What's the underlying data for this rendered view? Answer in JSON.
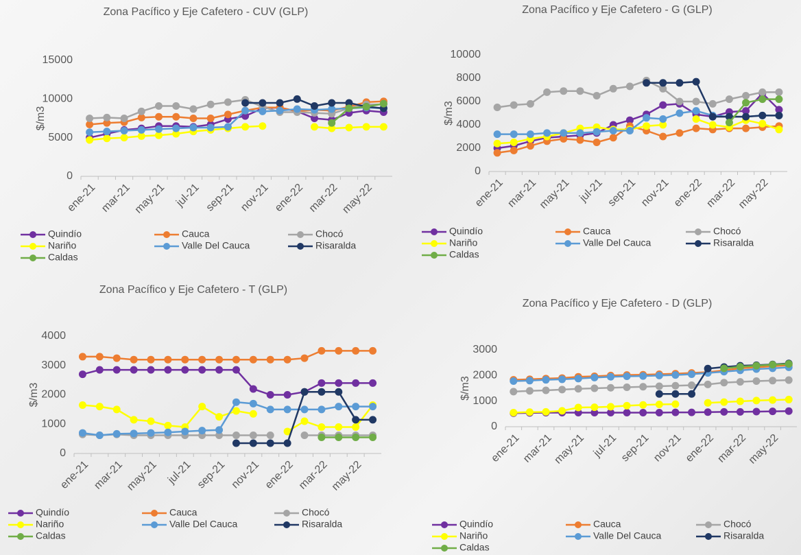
{
  "chart_data": [
    {
      "type": "line",
      "title": "Zona Pacífico y Eje Cafetero - CUV (GLP)",
      "y_label": "$/m3",
      "categories": [
        "ene-21",
        null,
        "mar-21",
        null,
        "may-21",
        null,
        "jul-21",
        null,
        "sep-21",
        null,
        "nov-21",
        null,
        "ene-22",
        null,
        "mar-22",
        null,
        "may-22",
        null
      ],
      "ylim": [
        0,
        15000
      ],
      "yticks": [
        0,
        5000,
        10000,
        15000
      ],
      "series": [
        {
          "name": "Quindío",
          "color": "#7030a0",
          "values": [
            5000,
            5500,
            6000,
            6200,
            6500,
            6500,
            6400,
            6700,
            7400,
            7800,
            8800,
            8900,
            8400,
            7500,
            7300,
            8200,
            8500,
            8300
          ]
        },
        {
          "name": "Cauca",
          "color": "#ed7d31",
          "values": [
            6700,
            6900,
            7000,
            7600,
            7700,
            7700,
            7500,
            7500,
            8000,
            8500,
            8900,
            8900,
            8400,
            8600,
            8500,
            9000,
            9600,
            9700
          ]
        },
        {
          "name": "Chocó",
          "color": "#a5a5a5",
          "values": [
            7500,
            7600,
            7500,
            8400,
            9100,
            9100,
            8700,
            9300,
            9600,
            9900,
            9000,
            8300,
            8300,
            8200,
            8100,
            8800,
            9300,
            9300
          ]
        },
        {
          "name": "Nariño",
          "color": "#ffff00",
          "values": [
            4700,
            4900,
            5000,
            5200,
            5300,
            5500,
            5800,
            6000,
            6200,
            6400,
            6500,
            null,
            null,
            6400,
            6200,
            6300,
            6400,
            6400
          ]
        },
        {
          "name": "Valle Del Cauca",
          "color": "#5b9bd5",
          "values": [
            5700,
            5800,
            5900,
            6000,
            6100,
            6200,
            6300,
            6300,
            6400,
            8500,
            8400,
            8500,
            8700,
            8600,
            8700,
            8800,
            8900,
            8800
          ]
        },
        {
          "name": "Risaralda",
          "color": "#203864",
          "values": [
            null,
            null,
            null,
            null,
            null,
            null,
            null,
            null,
            null,
            9500,
            9500,
            9500,
            10000,
            9100,
            9500,
            9500,
            9000,
            8800
          ]
        },
        {
          "name": "Caldas",
          "color": "#70ad47",
          "values": [
            null,
            null,
            null,
            null,
            null,
            null,
            null,
            null,
            null,
            null,
            null,
            null,
            null,
            null,
            6900,
            8800,
            9000,
            9400
          ]
        }
      ]
    },
    {
      "type": "line",
      "title": "Zona Pacífico y Eje Cafetero - G (GLP)",
      "y_label": "$/m3",
      "categories": [
        "ene-21",
        null,
        "mar-21",
        null,
        "may-21",
        null,
        "jul-21",
        null,
        "sep-21",
        null,
        "nov-21",
        null,
        "ene-22",
        null,
        "mar-22",
        null,
        "may-22",
        null
      ],
      "ylim": [
        0,
        10000
      ],
      "yticks": [
        0,
        2000,
        4000,
        6000,
        8000,
        10000
      ],
      "series": [
        {
          "name": "Quindío",
          "color": "#7030a0",
          "values": [
            2000,
            2200,
            2600,
            2900,
            3000,
            3100,
            3300,
            4000,
            4400,
            4900,
            5700,
            5800,
            4900,
            4700,
            5100,
            5200,
            6700,
            5300
          ]
        },
        {
          "name": "Cauca",
          "color": "#ed7d31",
          "values": [
            1600,
            1800,
            2200,
            2600,
            2800,
            2700,
            2500,
            2900,
            3900,
            3500,
            3000,
            3300,
            3700,
            3600,
            3700,
            3700,
            3800,
            3900
          ]
        },
        {
          "name": "Chocó",
          "color": "#a5a5a5",
          "values": [
            5500,
            5700,
            5800,
            6800,
            6900,
            6900,
            6500,
            7100,
            7300,
            7800,
            7100,
            6000,
            6000,
            5800,
            6200,
            6500,
            6800,
            6800
          ]
        },
        {
          "name": "Nariño",
          "color": "#ffff00",
          "values": [
            2400,
            2500,
            2800,
            3000,
            3300,
            3700,
            3800,
            3600,
            3600,
            3900,
            4000,
            null,
            4500,
            4000,
            3800,
            4400,
            4100,
            3600
          ]
        },
        {
          "name": "Valle Del Cauca",
          "color": "#5b9bd5",
          "values": [
            3200,
            3200,
            3200,
            3300,
            3300,
            3300,
            3400,
            3500,
            3500,
            4600,
            4500,
            5000,
            5200,
            4800,
            4700,
            4700,
            4800,
            4800
          ]
        },
        {
          "name": "Risaralda",
          "color": "#203864",
          "values": [
            null,
            null,
            null,
            null,
            null,
            null,
            null,
            null,
            null,
            7600,
            7600,
            7600,
            7700,
            4700,
            4700,
            4700,
            4800,
            4800
          ]
        },
        {
          "name": "Caldas",
          "color": "#70ad47",
          "values": [
            null,
            null,
            null,
            null,
            null,
            null,
            null,
            null,
            null,
            null,
            null,
            null,
            null,
            null,
            4200,
            5900,
            6200,
            6200
          ]
        }
      ]
    },
    {
      "type": "line",
      "title": "Zona Pacífico y Eje Cafetero - T (GLP)",
      "y_label": "$/m3",
      "categories": [
        "ene-21",
        null,
        "mar-21",
        null,
        "may-21",
        null,
        "jul-21",
        null,
        "sep-21",
        null,
        "nov-21",
        null,
        "ene-22",
        null,
        "mar-22",
        null,
        "may-22",
        null
      ],
      "ylim": [
        0,
        4000
      ],
      "yticks": [
        0,
        1000,
        2000,
        3000,
        4000
      ],
      "series": [
        {
          "name": "Quindío",
          "color": "#7030a0",
          "values": [
            2700,
            2850,
            2850,
            2850,
            2850,
            2850,
            2850,
            2850,
            2850,
            2850,
            2200,
            2000,
            2000,
            2100,
            2400,
            2400,
            2400,
            2400
          ]
        },
        {
          "name": "Cauca",
          "color": "#ed7d31",
          "values": [
            3300,
            3300,
            3250,
            3200,
            3200,
            3200,
            3200,
            3200,
            3200,
            3200,
            3200,
            3200,
            3200,
            3250,
            3500,
            3500,
            3500,
            3500
          ]
        },
        {
          "name": "Chocó",
          "color": "#a5a5a5",
          "values": [
            650,
            620,
            650,
            620,
            620,
            620,
            620,
            620,
            620,
            620,
            620,
            620,
            null,
            620,
            620,
            620,
            620,
            620
          ]
        },
        {
          "name": "Nariño",
          "color": "#ffff00",
          "values": [
            1650,
            1600,
            1500,
            1150,
            1100,
            950,
            900,
            1600,
            1250,
            1450,
            1350,
            null,
            750,
            1100,
            900,
            900,
            900,
            1650
          ]
        },
        {
          "name": "Valle Del Cauca",
          "color": "#5b9bd5",
          "values": [
            700,
            620,
            670,
            680,
            700,
            720,
            750,
            780,
            800,
            1750,
            1700,
            1500,
            1500,
            1500,
            1500,
            1600,
            1600,
            1600
          ]
        },
        {
          "name": "Risaralda",
          "color": "#203864",
          "values": [
            null,
            null,
            null,
            null,
            null,
            null,
            null,
            null,
            null,
            350,
            350,
            350,
            350,
            2100,
            2100,
            2100,
            1150,
            1150
          ]
        },
        {
          "name": "Caldas",
          "color": "#70ad47",
          "values": [
            null,
            null,
            null,
            null,
            null,
            null,
            null,
            null,
            null,
            null,
            null,
            null,
            null,
            null,
            550,
            550,
            550,
            550
          ]
        }
      ]
    },
    {
      "type": "line",
      "title": "Zona Pacífico y Eje Cafetero - D (GLP)",
      "y_label": "$/m3",
      "categories": [
        "ene-21",
        null,
        "mar-21",
        null,
        "may-21",
        null,
        "jul-21",
        null,
        "sep-21",
        null,
        "nov-21",
        null,
        "ene-22",
        null,
        "mar-22",
        null,
        "may-22",
        null
      ],
      "ylim": [
        0,
        3000
      ],
      "yticks": [
        0,
        1000,
        2000,
        3000
      ],
      "series": [
        {
          "name": "Quindío",
          "color": "#7030a0",
          "values": [
            530,
            540,
            550,
            550,
            550,
            550,
            550,
            550,
            550,
            550,
            560,
            560,
            570,
            580,
            580,
            590,
            600,
            610
          ]
        },
        {
          "name": "Cauca",
          "color": "#ed7d31",
          "values": [
            1830,
            1850,
            1880,
            1900,
            1950,
            1970,
            2000,
            2020,
            2030,
            2050,
            2070,
            2100,
            2130,
            2200,
            2280,
            2320,
            2360,
            2400
          ]
        },
        {
          "name": "Chocó",
          "color": "#a5a5a5",
          "values": [
            1370,
            1400,
            1420,
            1450,
            1480,
            1500,
            1520,
            1540,
            1560,
            1580,
            1600,
            1620,
            1650,
            1720,
            1750,
            1780,
            1800,
            1820
          ]
        },
        {
          "name": "Nariño",
          "color": "#ffff00",
          "values": [
            550,
            570,
            580,
            620,
            750,
            760,
            780,
            820,
            850,
            870,
            880,
            null,
            930,
            960,
            990,
            1020,
            1040,
            1060
          ]
        },
        {
          "name": "Valle Del Cauca",
          "color": "#5b9bd5",
          "values": [
            1780,
            1800,
            1830,
            1850,
            1880,
            1920,
            1950,
            1970,
            1980,
            2000,
            2020,
            2050,
            2100,
            2150,
            2200,
            2250,
            2280,
            2320
          ]
        },
        {
          "name": "Risaralda",
          "color": "#203864",
          "values": [
            null,
            null,
            null,
            null,
            null,
            null,
            null,
            null,
            null,
            1280,
            1280,
            1280,
            2270,
            2330,
            2380,
            2400,
            2430,
            2470
          ]
        },
        {
          "name": "Caldas",
          "color": "#70ad47",
          "values": [
            null,
            null,
            null,
            null,
            null,
            null,
            null,
            null,
            null,
            null,
            null,
            null,
            null,
            2280,
            2340,
            2380,
            2420,
            2450
          ]
        }
      ]
    }
  ]
}
